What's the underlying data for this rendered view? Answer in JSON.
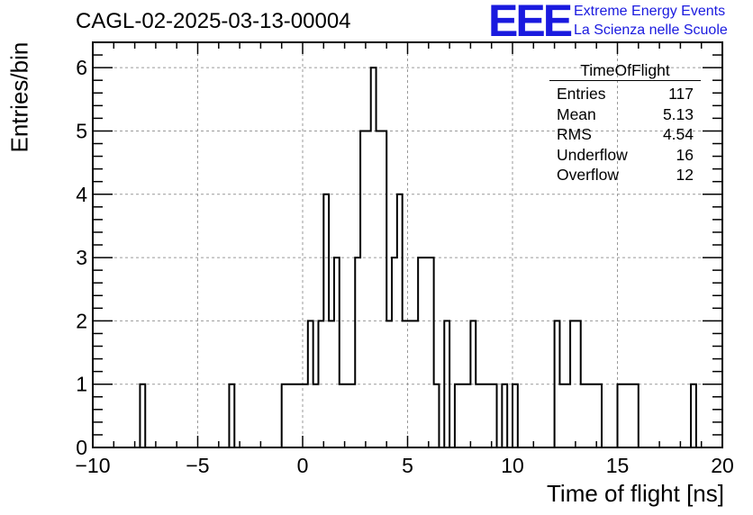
{
  "header": {
    "title": "CAGL-02-2025-03-13-00004",
    "logo_text": "EEE",
    "logo_line1": "Extreme Energy Events",
    "logo_line2": "La Scienza nelle Scuole",
    "logo_color": "#1a1adf"
  },
  "stats_box": {
    "title": "TimeOfFlight",
    "rows": [
      {
        "label": "Entries",
        "value": "117"
      },
      {
        "label": "Mean",
        "value": "5.13"
      },
      {
        "label": "RMS",
        "value": "4.54"
      },
      {
        "label": "Underflow",
        "value": "16"
      },
      {
        "label": "Overflow",
        "value": "12"
      }
    ]
  },
  "chart_data": {
    "type": "bar",
    "style": "step-histogram",
    "title": "CAGL-02-2025-03-13-00004",
    "xlabel": "Time of flight [ns]",
    "ylabel": "Entries/bin",
    "xlim": [
      -10,
      20
    ],
    "ylim": [
      0,
      6.4
    ],
    "xticks": [
      -10,
      -5,
      0,
      5,
      10,
      15,
      20
    ],
    "yticks": [
      0,
      1,
      2,
      3,
      4,
      5,
      6
    ],
    "grid": true,
    "line_color": "#000000",
    "bins": [
      {
        "x0": -7.75,
        "x1": -7.5,
        "value": 1
      },
      {
        "x0": -3.5,
        "x1": -3.25,
        "value": 1
      },
      {
        "x0": -1.0,
        "x1": 0.0,
        "value": 1
      },
      {
        "x0": 0.0,
        "x1": 0.25,
        "value": 1
      },
      {
        "x0": 0.25,
        "x1": 0.5,
        "value": 2
      },
      {
        "x0": 0.5,
        "x1": 0.75,
        "value": 1
      },
      {
        "x0": 0.75,
        "x1": 1.0,
        "value": 2
      },
      {
        "x0": 1.0,
        "x1": 1.25,
        "value": 4
      },
      {
        "x0": 1.25,
        "x1": 1.5,
        "value": 2
      },
      {
        "x0": 1.5,
        "x1": 1.75,
        "value": 3
      },
      {
        "x0": 1.75,
        "x1": 2.5,
        "value": 1
      },
      {
        "x0": 2.5,
        "x1": 2.75,
        "value": 3
      },
      {
        "x0": 2.75,
        "x1": 3.0,
        "value": 5
      },
      {
        "x0": 3.0,
        "x1": 3.25,
        "value": 5
      },
      {
        "x0": 3.25,
        "x1": 3.5,
        "value": 6
      },
      {
        "x0": 3.5,
        "x1": 4.0,
        "value": 5
      },
      {
        "x0": 4.0,
        "x1": 4.25,
        "value": 2
      },
      {
        "x0": 4.25,
        "x1": 4.5,
        "value": 3
      },
      {
        "x0": 4.5,
        "x1": 4.75,
        "value": 4
      },
      {
        "x0": 4.75,
        "x1": 5.5,
        "value": 2
      },
      {
        "x0": 5.5,
        "x1": 6.0,
        "value": 3
      },
      {
        "x0": 6.0,
        "x1": 6.25,
        "value": 3
      },
      {
        "x0": 6.25,
        "x1": 6.5,
        "value": 1
      },
      {
        "x0": 6.75,
        "x1": 7.0,
        "value": 2
      },
      {
        "x0": 7.25,
        "x1": 8.0,
        "value": 1
      },
      {
        "x0": 8.0,
        "x1": 8.25,
        "value": 2
      },
      {
        "x0": 8.25,
        "x1": 9.25,
        "value": 1
      },
      {
        "x0": 9.5,
        "x1": 9.75,
        "value": 1
      },
      {
        "x0": 10.0,
        "x1": 10.25,
        "value": 1
      },
      {
        "x0": 12.0,
        "x1": 12.25,
        "value": 2
      },
      {
        "x0": 12.25,
        "x1": 12.75,
        "value": 1
      },
      {
        "x0": 12.75,
        "x1": 13.25,
        "value": 2
      },
      {
        "x0": 13.25,
        "x1": 13.75,
        "value": 1
      },
      {
        "x0": 13.75,
        "x1": 14.25,
        "value": 1
      },
      {
        "x0": 15.0,
        "x1": 15.25,
        "value": 1
      },
      {
        "x0": 15.25,
        "x1": 16.0,
        "value": 1
      },
      {
        "x0": 18.5,
        "x1": 18.75,
        "value": 1
      }
    ]
  }
}
